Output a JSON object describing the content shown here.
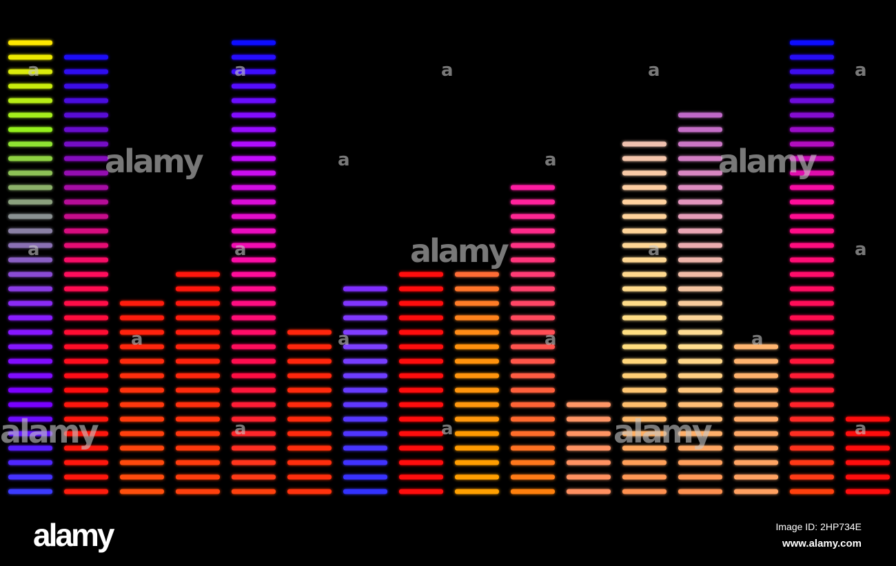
{
  "equalizer": {
    "columns": [
      {
        "segments": 32,
        "colors": [
          "#ffe800",
          "#90f020",
          "#8a8a9a",
          "#8a20ff",
          "#7a00ff",
          "#3a3aff"
        ]
      },
      {
        "segments": 31,
        "colors": [
          "#1010ff",
          "#8010c0",
          "#ff1060",
          "#ff1010",
          "#ff1a10"
        ]
      },
      {
        "segments": 14,
        "colors": [
          "#ff1040",
          "#ff1010",
          "#ff5010"
        ]
      },
      {
        "segments": 16,
        "colors": [
          "#ff1010",
          "#ff1010",
          "#ff4010"
        ]
      },
      {
        "segments": 32,
        "colors": [
          "#1010ff",
          "#c010ff",
          "#ff10a0",
          "#ff1040",
          "#ff4010"
        ]
      },
      {
        "segments": 12,
        "colors": [
          "#ff1010",
          "#ff3010"
        ]
      },
      {
        "segments": 15,
        "colors": [
          "#7050ff",
          "#8010ff",
          "#8040ff",
          "#3030ff"
        ]
      },
      {
        "segments": 16,
        "colors": [
          "#ff1010",
          "#ff1010"
        ]
      },
      {
        "segments": 16,
        "colors": [
          "#ff10c0",
          "#ff4060",
          "#ff9010",
          "#ffa000"
        ]
      },
      {
        "segments": 22,
        "colors": [
          "#e010e0",
          "#ff20a0",
          "#ff5050",
          "#ff8010"
        ]
      },
      {
        "segments": 7,
        "colors": [
          "#ffb080",
          "#ff9060"
        ]
      },
      {
        "segments": 25,
        "colors": [
          "#d0a0d0",
          "#ffd0a0",
          "#ffe080",
          "#ff9050"
        ]
      },
      {
        "segments": 27,
        "colors": [
          "#a040d0",
          "#e090c0",
          "#ffe090",
          "#ff9050"
        ]
      },
      {
        "segments": 11,
        "colors": [
          "#ffe090",
          "#ffa060"
        ]
      },
      {
        "segments": 32,
        "colors": [
          "#1010ff",
          "#ff10a0",
          "#ff1040",
          "#ff4010"
        ]
      },
      {
        "segments": 6,
        "colors": [
          "#ff1010",
          "#ff1010"
        ]
      }
    ]
  },
  "watermark": {
    "word": "alamy",
    "letter": "a"
  },
  "footer": {
    "logo": "alamy",
    "image_id": "Image ID: 2HP734E",
    "site": "www.alamy.com"
  }
}
